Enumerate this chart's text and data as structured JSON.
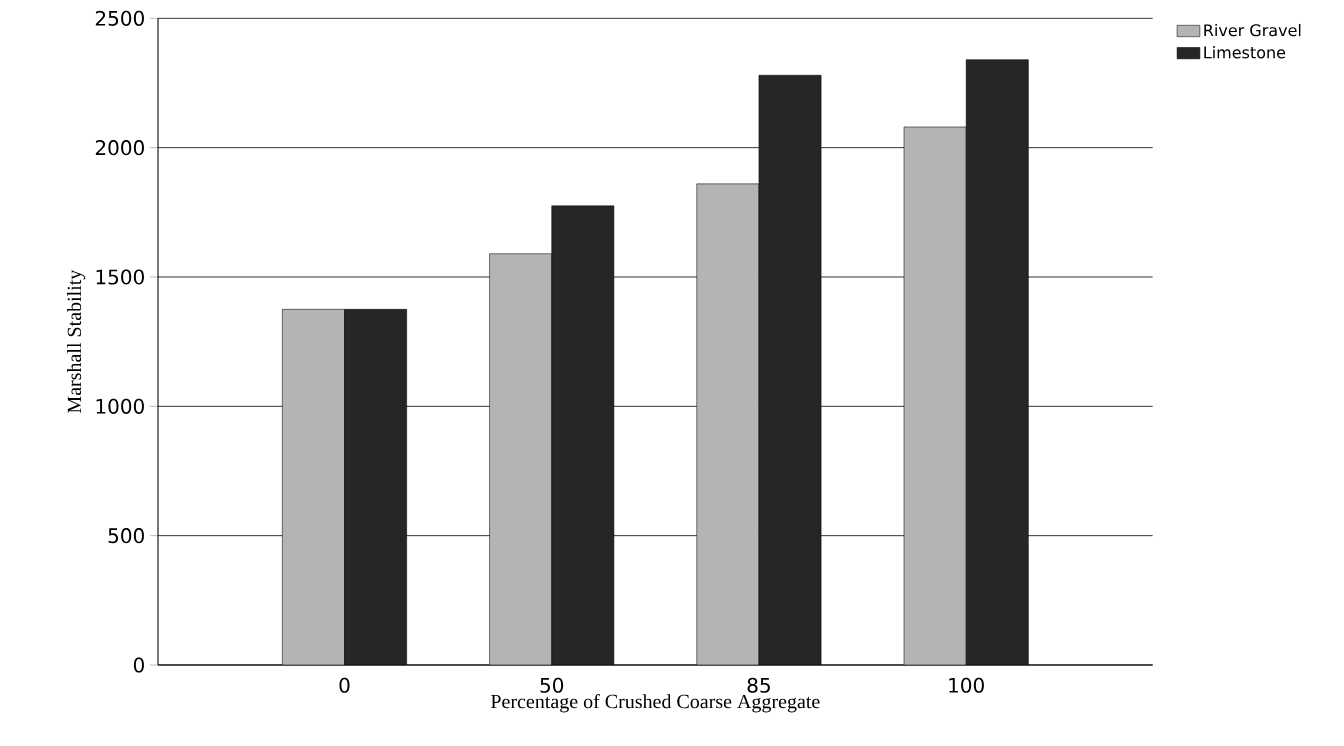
{
  "chart_data": {
    "type": "bar",
    "xlabel": "Percentage of Crushed Coarse Aggregate",
    "ylabel": "Marshall Stability",
    "categories": [
      "0",
      "50",
      "85",
      "100"
    ],
    "series": [
      {
        "name": "River Gravel",
        "color": "#b4b4b4",
        "values": [
          1375,
          1590,
          1860,
          2080
        ]
      },
      {
        "name": "Limestone",
        "color": "#262626",
        "values": [
          1375,
          1775,
          2280,
          2340
        ]
      }
    ],
    "ylim": [
      0,
      2500
    ],
    "yticks": [
      0,
      500,
      1000,
      1500,
      2000,
      2500
    ],
    "grid": "y",
    "legend": "top right"
  }
}
